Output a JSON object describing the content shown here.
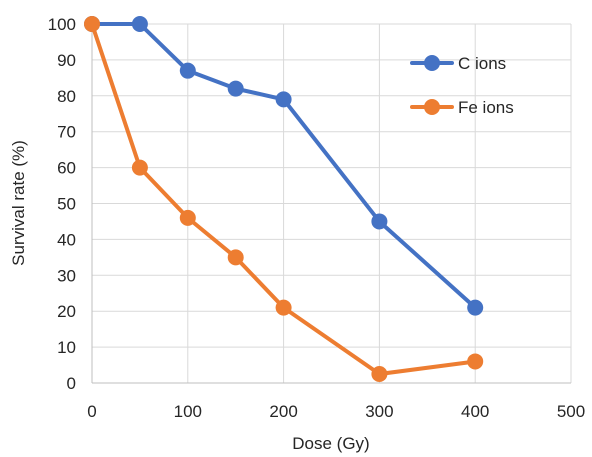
{
  "chart_data": {
    "type": "line",
    "title": "",
    "xlabel": "Dose (Gy)",
    "ylabel": "Survival rate (%)",
    "xlim": [
      0,
      500
    ],
    "ylim": [
      0,
      100
    ],
    "x_ticks": [
      0,
      100,
      200,
      300,
      400,
      500
    ],
    "y_ticks": [
      0,
      10,
      20,
      30,
      40,
      50,
      60,
      70,
      80,
      90,
      100
    ],
    "grid": true,
    "legend_position": "top-right",
    "series": [
      {
        "name": "C ions",
        "color": "#4472c4",
        "x": [
          0,
          50,
          100,
          150,
          200,
          300,
          400
        ],
        "y": [
          100,
          100,
          87,
          82,
          79,
          45,
          21
        ]
      },
      {
        "name": "Fe ions",
        "color": "#ed7d31",
        "x": [
          0,
          50,
          100,
          150,
          200,
          300,
          400
        ],
        "y": [
          100,
          60,
          46,
          35,
          21,
          2.5,
          6
        ]
      }
    ]
  }
}
